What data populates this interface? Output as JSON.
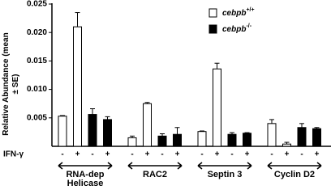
{
  "chart_data": {
    "type": "bar",
    "y_label": "Relative Abundance (mean ± SE)",
    "categories": [
      "RNA-dep Helicase",
      "RAC2",
      "Septin 3",
      "Cyclin D2"
    ],
    "treatment_label": "IFN-γ",
    "treatments": [
      "-",
      "+",
      "-",
      "+"
    ],
    "series": [
      {
        "name": "cebpb+/+",
        "color": "#ffffff",
        "values": [
          [
            0.0053,
            0.021
          ],
          [
            0.0015,
            0.0075
          ],
          [
            0.0026,
            0.0136
          ],
          [
            0.004,
            0.0004
          ]
        ],
        "errors": [
          [
            0.0001,
            0.0025
          ],
          [
            0.0003,
            0.0002
          ],
          [
            0.0001,
            0.001
          ],
          [
            0.0007,
            0.0003
          ]
        ]
      },
      {
        "name": "cebpb-/-",
        "color": "#000000",
        "values": [
          [
            0.0056,
            0.0047
          ],
          [
            0.0018,
            0.0021
          ],
          [
            0.0021,
            0.0023
          ],
          [
            0.0033,
            0.0031
          ]
        ],
        "errors": [
          [
            0.001,
            0.0005
          ],
          [
            0.0004,
            0.0012
          ],
          [
            0.0003,
            0.0001
          ],
          [
            0.0007,
            0.0002
          ]
        ]
      }
    ],
    "ylim": [
      0,
      0.025
    ],
    "yticks": [
      {
        "value": 0.005,
        "label": "0.005"
      },
      {
        "value": 0.01,
        "label": "0.010"
      },
      {
        "value": 0.015,
        "label": "0.015"
      },
      {
        "value": 0.02,
        "label": "0.020"
      },
      {
        "value": 0.025,
        "label": "0.025"
      }
    ]
  }
}
